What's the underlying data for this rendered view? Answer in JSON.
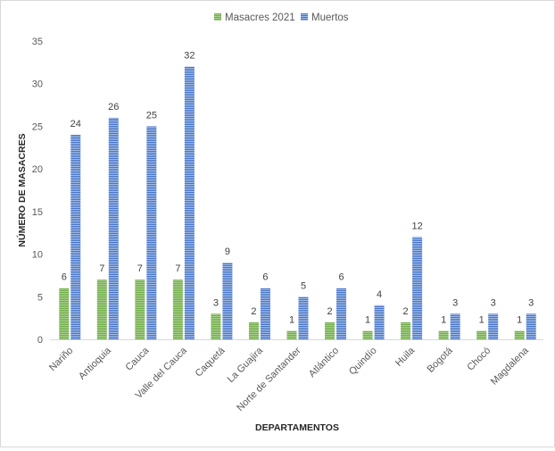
{
  "chart_data": {
    "type": "bar",
    "title": "",
    "xlabel": "DEPARTAMENTOS",
    "ylabel": "NÚMERO DE MASACRES",
    "ylim": [
      0,
      35
    ],
    "yticks": [
      0,
      5,
      10,
      15,
      20,
      25,
      30,
      35
    ],
    "grid": false,
    "legend_position": "top",
    "categories": [
      "Nariño",
      "Antioquia",
      "Cauca",
      "Valle del Cauca",
      "Caquetá",
      "La Guajira",
      "Norte de Santander",
      "Atlántico",
      "Quindío",
      "Huila",
      "Bogotá",
      "Chocó",
      "Magdalena"
    ],
    "series": [
      {
        "name": "Masacres 2021",
        "color": "#70ad47",
        "values": [
          6,
          7,
          7,
          7,
          3,
          2,
          1,
          2,
          1,
          2,
          1,
          1,
          1
        ]
      },
      {
        "name": "Muertos",
        "color": "#4472c4",
        "values": [
          24,
          26,
          25,
          32,
          9,
          6,
          5,
          6,
          4,
          12,
          3,
          3,
          3
        ]
      }
    ]
  }
}
